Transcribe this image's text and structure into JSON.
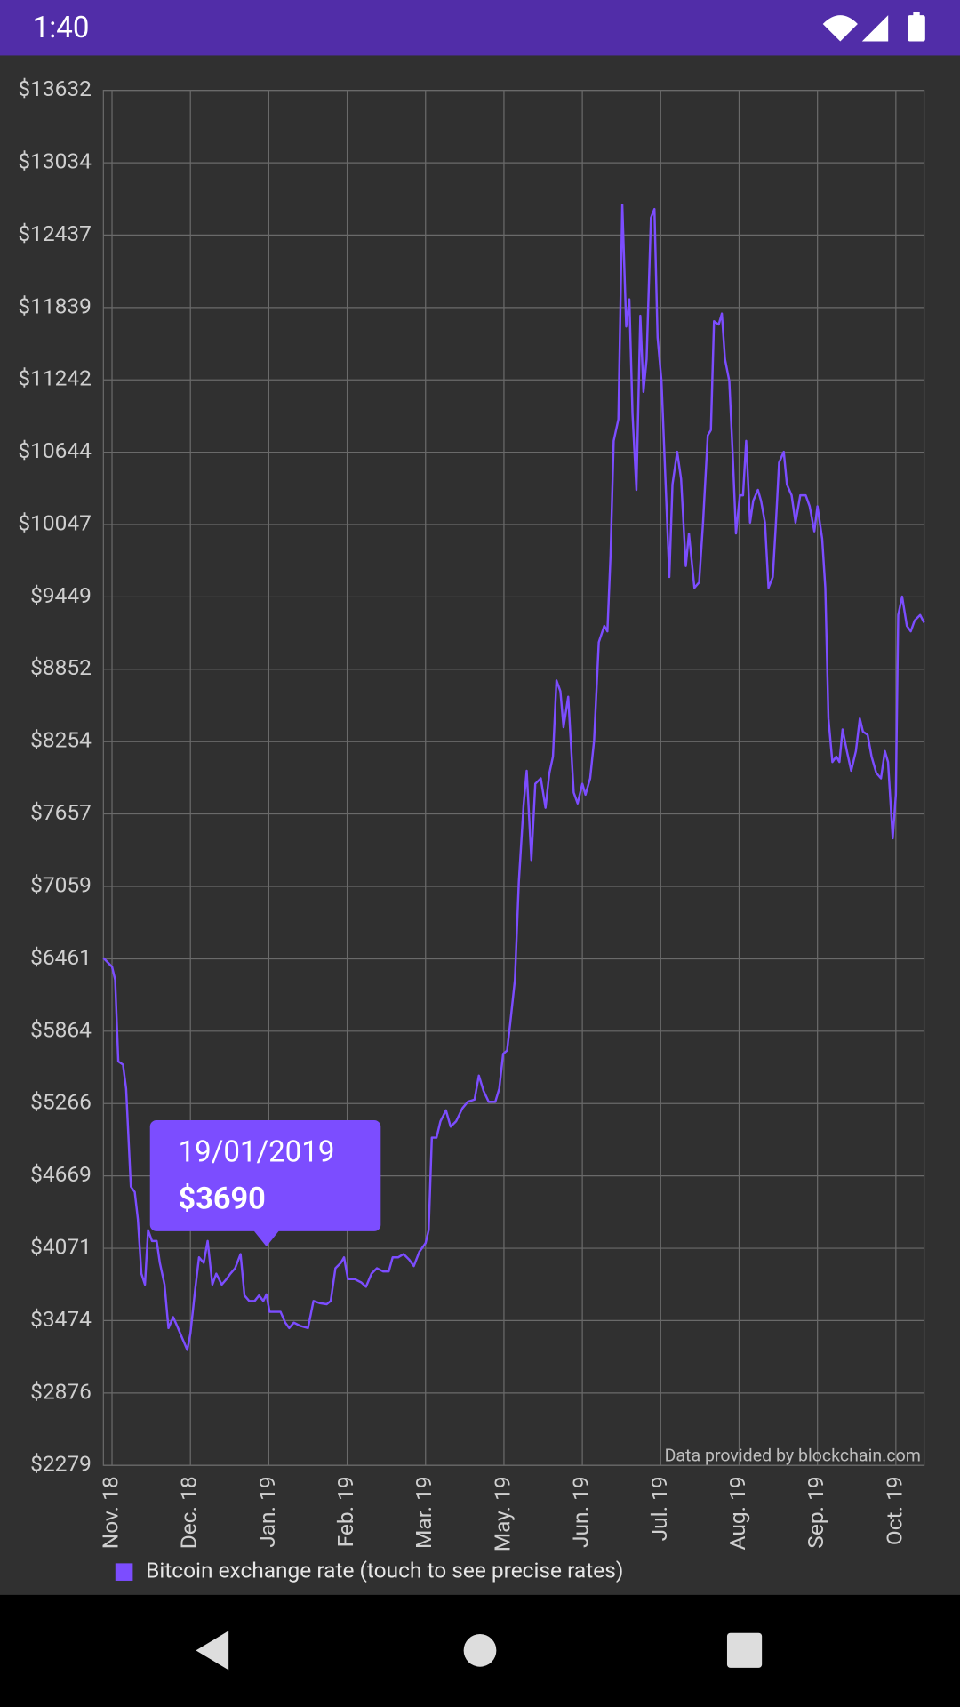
{
  "status_bar": {
    "time": "1:40"
  },
  "chart_data": {
    "type": "line",
    "attribution": "Data provided by blockchain.com",
    "x": [
      -1.1,
      0,
      0.4,
      0.8,
      1.4,
      1.8,
      2.4,
      2.9,
      3.3,
      3.75,
      4.2,
      4.6,
      5.1,
      5.7,
      6.1,
      6.7,
      7.2,
      7.8,
      8.3,
      9.0,
      9.6,
      10.0,
      10.6,
      11.1,
      11.7,
      12.2,
      12.8,
      13.3,
      14.0,
      14.6,
      15.1,
      15.7,
      16.4,
      16.9,
      17.5,
      18.2,
      18.75,
      19.3,
      19.7,
      20.1,
      20.8,
      21.5,
      22.1,
      22.6,
      23.2,
      24.0,
      25.0,
      25.7,
      26.5,
      27.4,
      27.9,
      28.5,
      29.2,
      29.6,
      30.1,
      30.97,
      31.8,
      32.4,
      33.1,
      33.8,
      34.6,
      35.3,
      35.8,
      36.5,
      37.2,
      37.9,
      38.5,
      39.2,
      40.0,
      40.4,
      40.8,
      41.4,
      41.9,
      42.6,
      43.2,
      43.9,
      44.7,
      45.4,
      46.25,
      46.8,
      47.4,
      48.05,
      48.9,
      49.4,
      49.9,
      50.4,
      50.8,
      51.4,
      51.9,
      52.5,
      52.9,
      53.5,
      54.0,
      54.7,
      55.3,
      55.8,
      56.25,
      56.7,
      57.2,
      57.6,
      58.2,
      58.9,
      59.4,
      60.0,
      60.4,
      61.0,
      61.5,
      62.1,
      62.8,
      63.2,
      63.6,
      64.0,
      64.6,
      65.1,
      65.6,
      66.0,
      66.4,
      66.9,
      67.4,
      67.8,
      68.2,
      68.75,
      69.2,
      69.6,
      70.1,
      70.6,
      71.1,
      71.5,
      72.1,
      72.6,
      73.2,
      73.6,
      74.3,
      74.9,
      75.4,
      76.0,
      76.4,
      76.8,
      77.4,
      77.8,
      78.2,
      78.75,
      79.2,
      79.6,
      80.1,
      80.5,
      80.9,
      81.4,
      81.8,
      82.4,
      82.8,
      83.3,
      83.75,
      84.3,
      84.7,
      85.1,
      85.7,
      86.1,
      86.7,
      87.2,
      87.8,
      88.5,
      89.0,
      89.6,
      90.0,
      90.6,
      91.0,
      91.4,
      91.9,
      92.4,
      92.8,
      93.2,
      93.75,
      94.3,
      94.9,
      95.4,
      95.8,
      96.4,
      96.9,
      97.5,
      98.1,
      98.6,
      99.0,
      99.6,
      100.0,
      100.3,
      100.8,
      101.4,
      101.9,
      102.4,
      103.1,
      103.6
    ],
    "series": [
      {
        "name": "Bitcoin exchange rate (touch to see precise rates)",
        "color": "#7c4dff",
        "values": [
          6468,
          6396,
          6288,
          5614,
          5587,
          5389,
          4580,
          4535,
          4310,
          3861,
          3771,
          4221,
          4131,
          4131,
          3951,
          3771,
          3412,
          3502,
          3430,
          3322,
          3232,
          3367,
          3726,
          3996,
          3951,
          4131,
          3771,
          3861,
          3771,
          3816,
          3861,
          3906,
          4023,
          3681,
          3636,
          3636,
          3681,
          3636,
          3690,
          3546,
          3546,
          3546,
          3457,
          3412,
          3457,
          3430,
          3412,
          3636,
          3618,
          3609,
          3636,
          3906,
          3951,
          3996,
          3816,
          3816,
          3789,
          3753,
          3861,
          3906,
          3879,
          3879,
          3996,
          3996,
          4023,
          3978,
          3924,
          4041,
          4113,
          4221,
          4985,
          4985,
          5120,
          5210,
          5075,
          5120,
          5227,
          5281,
          5299,
          5497,
          5371,
          5281,
          5281,
          5389,
          5677,
          5704,
          5929,
          6288,
          7097,
          7726,
          8014,
          7277,
          7906,
          7951,
          7708,
          7996,
          8131,
          8760,
          8670,
          8373,
          8625,
          7834,
          7744,
          7906,
          7816,
          7951,
          8265,
          9075,
          9210,
          9165,
          9794,
          10738,
          10917,
          12688,
          11682,
          11907,
          10962,
          10333,
          11771,
          11142,
          11412,
          12580,
          12652,
          11592,
          11232,
          10423,
          9614,
          10378,
          10648,
          10423,
          9704,
          9973,
          9524,
          9569,
          10063,
          10783,
          10827,
          11726,
          11699,
          11789,
          11412,
          11232,
          10603,
          9973,
          10288,
          10288,
          10738,
          10063,
          10243,
          10333,
          10243,
          10063,
          9524,
          9614,
          10063,
          10558,
          10648,
          10378,
          10288,
          10063,
          10288,
          10288,
          10198,
          9991,
          10198,
          9929,
          9524,
          8445,
          8086,
          8131,
          8086,
          8355,
          8176,
          8014,
          8176,
          8445,
          8337,
          8310,
          8131,
          7996,
          7951,
          8176,
          8086,
          7456,
          7816,
          9300,
          9452,
          9210,
          9165,
          9255,
          9300,
          9237
        ]
      }
    ],
    "xlim": [
      -1.1,
      103.6
    ],
    "ylim": [
      2279,
      13632
    ],
    "xticks": [
      {
        "value": 0,
        "label": "Nov. 18"
      },
      {
        "value": 10,
        "label": "Dec. 18"
      },
      {
        "value": 20,
        "label": "Jan. 19"
      },
      {
        "value": 30,
        "label": "Feb. 19"
      },
      {
        "value": 40,
        "label": "Mar. 19"
      },
      {
        "value": 50,
        "label": "May. 19"
      },
      {
        "value": 60,
        "label": "Jun. 19"
      },
      {
        "value": 70,
        "label": "Jul. 19"
      },
      {
        "value": 80,
        "label": "Aug. 19"
      },
      {
        "value": 90,
        "label": "Sep. 19"
      },
      {
        "value": 100,
        "label": "Oct. 19"
      }
    ],
    "yticks": [
      {
        "value": 2279,
        "label": "$2279"
      },
      {
        "value": 2876,
        "label": "$2876"
      },
      {
        "value": 3474,
        "label": "$3474"
      },
      {
        "value": 4071,
        "label": "$4071"
      },
      {
        "value": 4669,
        "label": "$4669"
      },
      {
        "value": 5266,
        "label": "$5266"
      },
      {
        "value": 5864,
        "label": "$5864"
      },
      {
        "value": 6461,
        "label": "$6461"
      },
      {
        "value": 7059,
        "label": "$7059"
      },
      {
        "value": 7657,
        "label": "$7657"
      },
      {
        "value": 8254,
        "label": "$8254"
      },
      {
        "value": 8852,
        "label": "$8852"
      },
      {
        "value": 9449,
        "label": "$9449"
      },
      {
        "value": 10047,
        "label": "$10047"
      },
      {
        "value": 10644,
        "label": "$10644"
      },
      {
        "value": 11242,
        "label": "$11242"
      },
      {
        "value": 11839,
        "label": "$11839"
      },
      {
        "value": 12437,
        "label": "$12437"
      },
      {
        "value": 13034,
        "label": "$13034"
      },
      {
        "value": 13632,
        "label": "$13632"
      }
    ],
    "grid": true,
    "legend": "bottom-left",
    "tooltip": {
      "x": 19.7,
      "label": "19/01/2019",
      "value": 3690,
      "value_label": "$3690"
    }
  }
}
